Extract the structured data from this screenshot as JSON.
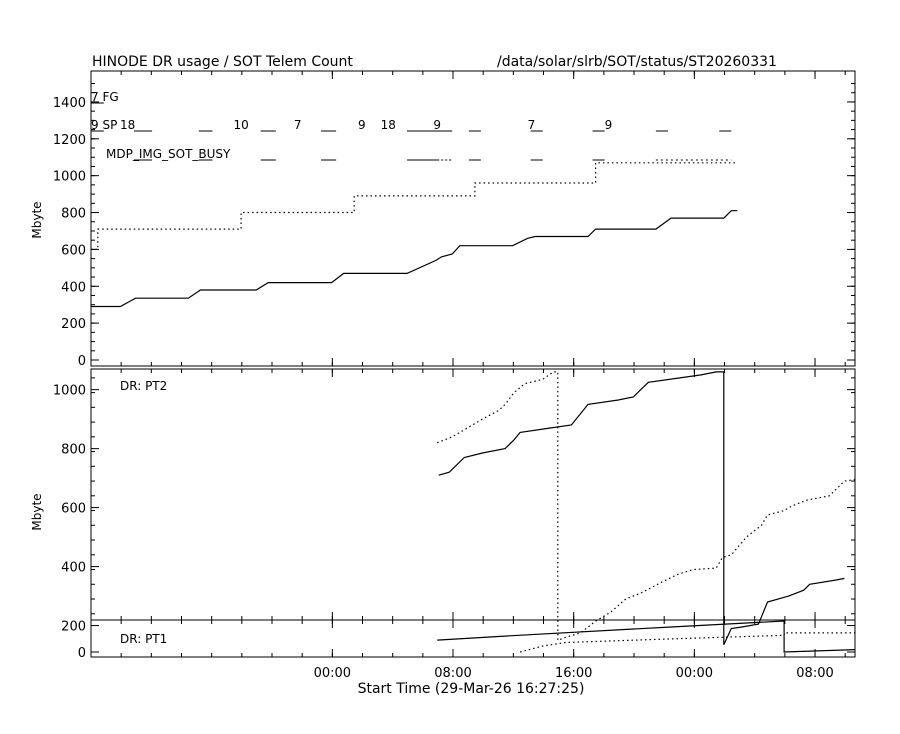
{
  "header": {
    "title": "HINODE DR usage / SOT Telem Count",
    "path": "/data/solar/slrb/SOT/status/ST20260331"
  },
  "chart_data": [
    {
      "type": "line",
      "panel": "top",
      "ylabel": "Mbyte",
      "ylim": [
        0,
        1500
      ],
      "yticks": [
        "0",
        "200",
        "400",
        "600",
        "800",
        "1000",
        "1200",
        "1400"
      ],
      "annotations": {
        "fg_label": "7 FG",
        "sp_label": "9 SP",
        "sp_extra": "18",
        "busy_label": "MDP_IMG_SOT_BUSY",
        "row_numbers": [
          {
            "text": "10",
            "t": 1.0
          },
          {
            "text": "7",
            "t": 5.0
          },
          {
            "text": "9",
            "t": 9.25
          },
          {
            "text": "18",
            "t": 10.75
          },
          {
            "text": "9",
            "t": 14.25
          },
          {
            "text": "7",
            "t": 20.5
          },
          {
            "text": "9",
            "t": 25.6
          }
        ]
      },
      "series": [
        {
          "style": "solid",
          "points": [
            [
              -8.45,
              290
            ],
            [
              -6.5,
              290
            ],
            [
              -5.5,
              335
            ],
            [
              -2.0,
              335
            ],
            [
              -1.2,
              380
            ],
            [
              2.5,
              380
            ],
            [
              3.3,
              420
            ],
            [
              7.5,
              420
            ],
            [
              8.3,
              470
            ],
            [
              12.5,
              470
            ],
            [
              14.4,
              540
            ],
            [
              14.8,
              560
            ],
            [
              15.5,
              575
            ],
            [
              16.0,
              620
            ],
            [
              19.5,
              620
            ],
            [
              20.5,
              660
            ],
            [
              21.0,
              670
            ],
            [
              24.5,
              670
            ],
            [
              25.0,
              710
            ],
            [
              29.0,
              710
            ],
            [
              30.0,
              770
            ],
            [
              33.5,
              770
            ],
            [
              34.0,
              810
            ],
            [
              34.4,
              810
            ]
          ]
        },
        {
          "style": "dotted",
          "points": [
            [
              -8.45,
              600
            ],
            [
              -8.0,
              600
            ],
            [
              -8.0,
              710
            ],
            [
              1.5,
              710
            ],
            [
              1.5,
              800
            ],
            [
              9.0,
              800
            ],
            [
              9.0,
              890
            ],
            [
              17.0,
              890
            ],
            [
              17.0,
              960
            ],
            [
              25.0,
              960
            ],
            [
              25.0,
              1070
            ],
            [
              34.4,
              1070
            ]
          ]
        }
      ]
    },
    {
      "type": "line",
      "panel": "middle",
      "legend": "DR: PT2",
      "ylabel": "Mbyte",
      "ylim": [
        90,
        1070
      ],
      "yticks": [
        "200",
        "400",
        "600",
        "800",
        "1000"
      ],
      "series": [
        {
          "style": "solid",
          "points": [
            [
              14.6,
              710
            ],
            [
              15.3,
              720
            ],
            [
              16.3,
              770
            ],
            [
              17.5,
              785
            ],
            [
              19.0,
              800
            ],
            [
              19.6,
              830
            ],
            [
              20.0,
              855
            ],
            [
              22.0,
              870
            ],
            [
              23.4,
              880
            ],
            [
              24.5,
              950
            ],
            [
              26.5,
              965
            ],
            [
              27.5,
              975
            ],
            [
              28.0,
              1000
            ],
            [
              28.5,
              1025
            ],
            [
              32.0,
              1050
            ],
            [
              33.0,
              1060
            ],
            [
              33.5,
              1060
            ],
            [
              33.5,
              135
            ],
            [
              34.0,
              190
            ],
            [
              34.7,
              195
            ],
            [
              35.8,
              205
            ],
            [
              36.4,
              280
            ],
            [
              37.8,
              300
            ],
            [
              38.8,
              320
            ],
            [
              39.2,
              340
            ],
            [
              41.0,
              355
            ],
            [
              41.5,
              360
            ]
          ]
        },
        {
          "style": "dotted",
          "points": [
            [
              14.5,
              820
            ],
            [
              15.5,
              840
            ],
            [
              16.5,
              870
            ],
            [
              17.0,
              885
            ],
            [
              17.5,
              900
            ],
            [
              18.6,
              930
            ],
            [
              19.0,
              950
            ],
            [
              19.6,
              990
            ],
            [
              20.3,
              1020
            ],
            [
              21.5,
              1035
            ],
            [
              22.2,
              1060
            ],
            [
              22.5,
              1060
            ],
            [
              22.5,
              150
            ],
            [
              23.0,
              160
            ],
            [
              24.0,
              175
            ],
            [
              25.0,
              215
            ],
            [
              26.0,
              245
            ],
            [
              27.0,
              290
            ],
            [
              28.0,
              310
            ],
            [
              29.5,
              350
            ],
            [
              30.5,
              375
            ],
            [
              31.5,
              390
            ],
            [
              33.0,
              395
            ],
            [
              33.4,
              430
            ],
            [
              34.0,
              440
            ],
            [
              34.5,
              470
            ],
            [
              35.0,
              500
            ],
            [
              36.0,
              540
            ],
            [
              36.4,
              575
            ],
            [
              37.5,
              590
            ],
            [
              38.0,
              605
            ],
            [
              39.0,
              625
            ],
            [
              40.5,
              640
            ],
            [
              41.5,
              690
            ],
            [
              42.2,
              695
            ]
          ]
        }
      ]
    },
    {
      "type": "line",
      "panel": "bottom",
      "legend": "DR: PT1",
      "ylim": [
        0,
        130
      ],
      "yticks": [
        "0"
      ],
      "series": [
        {
          "style": "solid",
          "points": [
            [
              14.5,
              50
            ],
            [
              20.5,
              72
            ],
            [
              30.0,
              105
            ],
            [
              37.5,
              130
            ],
            [
              37.5,
              0
            ],
            [
              42.2,
              10
            ]
          ]
        },
        {
          "style": "dotted",
          "points": [
            [
              20.0,
              0
            ],
            [
              21.5,
              25
            ],
            [
              23.0,
              40
            ],
            [
              30.0,
              55
            ],
            [
              37.5,
              70
            ],
            [
              37.5,
              80
            ],
            [
              42.2,
              80
            ]
          ]
        }
      ]
    }
  ],
  "xaxis": {
    "label": "Start Time (29-Mar-26 16:27:25)",
    "xlim_hours": [
      -8.45,
      42.2
    ],
    "ticks": [
      {
        "label": "00:00",
        "t": 7.55
      },
      {
        "label": "08:00",
        "t": 15.55
      },
      {
        "label": "16:00",
        "t": 23.55
      },
      {
        "label": "00:00",
        "t": 31.55
      },
      {
        "label": "08:00",
        "t": 39.55
      },
      {
        "label": "16:00",
        "t": 47.55
      }
    ]
  }
}
